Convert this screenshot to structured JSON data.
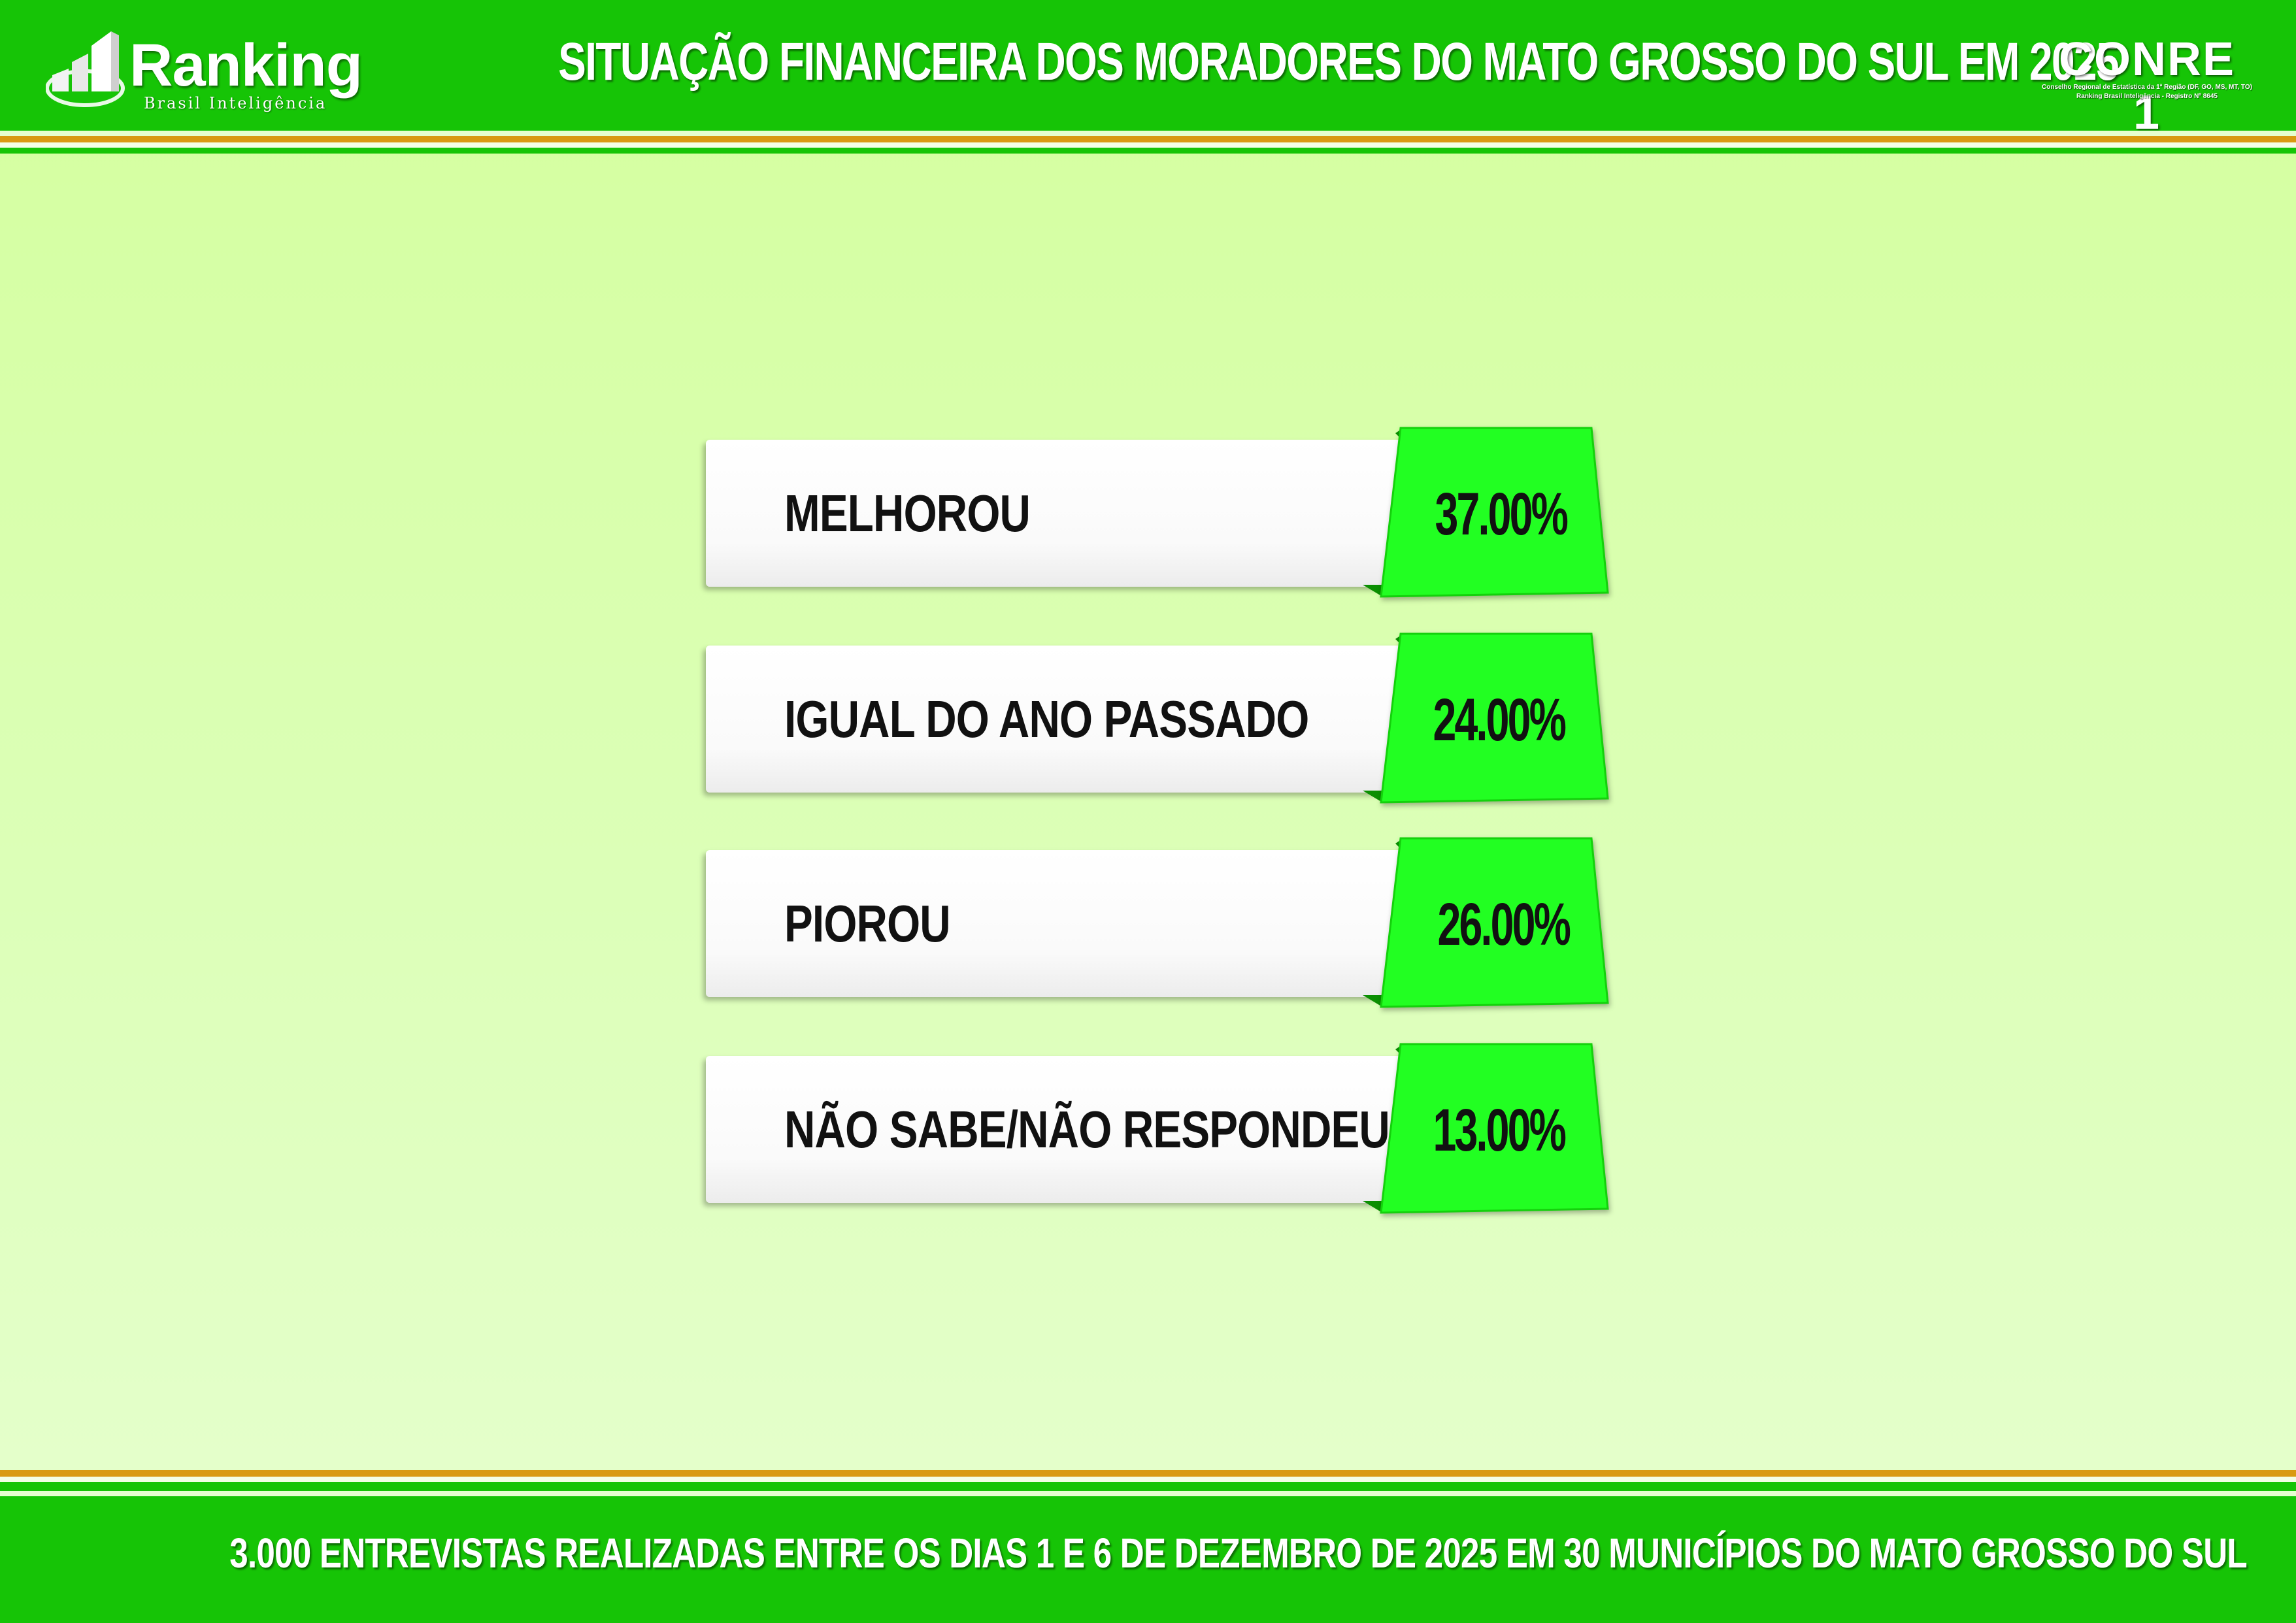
{
  "header": {
    "logo_name": "Ranking",
    "logo_subtitle": "Brasil Inteligência",
    "title": "SITUAÇÃO FINANCEIRA DOS MORADORES DO MATO GROSSO DO SUL EM 2025",
    "badge_name": "CONRE 1",
    "badge_line1": "Conselho Regional de Estatística da 1ª Região (DF, GO, MS, MT, TO)",
    "badge_line2": "Ranking Brasil Inteligência - Registro Nº 8645"
  },
  "chart_data": {
    "type": "table",
    "title": "SITUAÇÃO FINANCEIRA DOS MORADORES DO MATO GROSSO DO SUL EM 2025",
    "categories": [
      "MELHOROU",
      "IGUAL DO ANO PASSADO",
      "PIOROU",
      "NÃO SABE/NÃO RESPONDEU"
    ],
    "values": [
      37.0,
      24.0,
      26.0,
      13.0
    ],
    "value_labels": [
      "37.00%",
      "24.00%",
      "26.00%",
      "13.00%"
    ],
    "unit": "%"
  },
  "footer": {
    "note": "3.000 ENTREVISTAS REALIZADAS ENTRE OS DIAS 1 E 6 DE DEZEMBRO DE 2025 EM 30 MUNICÍPIOS DO MATO GROSSO DO SUL"
  },
  "colors": {
    "brand_green": "#16c406",
    "bright_green": "#22ff22",
    "stripe_orange": "#d99a12",
    "background": "#d8ffaa"
  }
}
